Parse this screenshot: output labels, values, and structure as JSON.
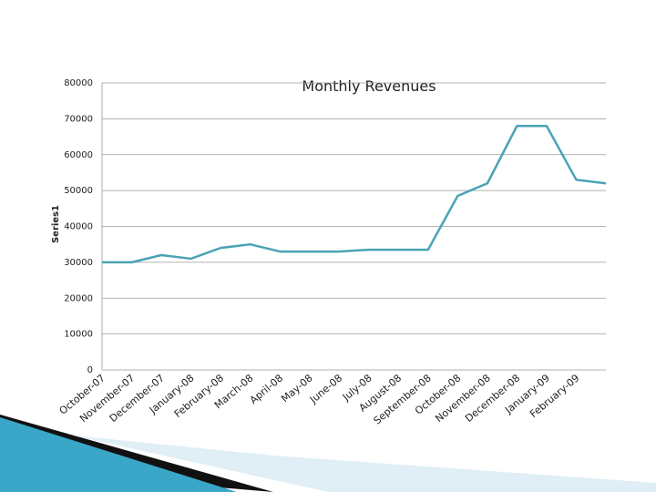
{
  "chart_data": {
    "type": "line",
    "title": "Monthly Revenues",
    "y_label": "Series1",
    "categories": [
      "October-07",
      "November-07",
      "December-07",
      "January-08",
      "February-08",
      "March-08",
      "April-08",
      "May-08",
      "June-08",
      "July-08",
      "August-08",
      "September-08",
      "October-08",
      "November-08",
      "December-08",
      "January-09",
      "February-09",
      null
    ],
    "series": [
      {
        "name": "Series1",
        "color": "#4aa3b5",
        "values": [
          30000,
          30000,
          32000,
          31000,
          34000,
          35000,
          33000,
          33000,
          33000,
          33500,
          33500,
          33500,
          48500,
          52000,
          68000,
          68000,
          53000,
          52000
        ]
      }
    ],
    "ylim": [
      0,
      80000
    ],
    "yticks": [
      0,
      10000,
      20000,
      30000,
      40000,
      50000,
      60000,
      70000,
      80000
    ],
    "grid": true
  }
}
